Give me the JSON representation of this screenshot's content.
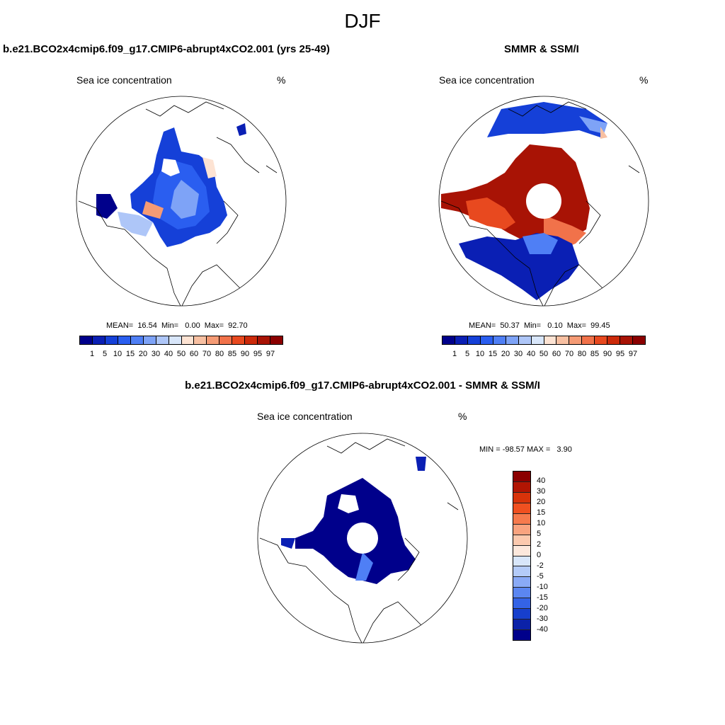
{
  "figure": {
    "season": "DJF",
    "panels": {
      "model": {
        "title": "b.e21.BCO2x4cmip6.f09_g17.CMIP6-abrupt4xCO2.001 (yrs 25-49)",
        "variable": "Sea ice concentration",
        "units": "%",
        "stats_text": "MEAN=  16.54  Min=   0.00  Max=  92.70",
        "stats": {
          "mean": 16.54,
          "min": 0.0,
          "max": 92.7
        }
      },
      "obs": {
        "title": "SMMR & SSM/I",
        "variable": "Sea ice concentration",
        "units": "%",
        "stats_text": "MEAN=  50.37  Min=   0.10  Max=  99.45",
        "stats": {
          "mean": 50.37,
          "min": 0.1,
          "max": 99.45
        }
      },
      "diff": {
        "title": "b.e21.BCO2x4cmip6.f09_g17.CMIP6-abrupt4xCO2.001 - SMMR & SSM/I",
        "variable": "Sea ice concentration",
        "units": "%",
        "stats_text": "MIN = -98.57 MAX =   3.90",
        "stats": {
          "min": -98.57,
          "max": 3.9
        }
      }
    },
    "colorbar_abs": {
      "levels": [
        "1",
        "5",
        "10",
        "15",
        "20",
        "30",
        "40",
        "50",
        "60",
        "70",
        "80",
        "85",
        "90",
        "95",
        "97"
      ],
      "colors": [
        "#00008b",
        "#0a1fb4",
        "#1540d8",
        "#2a5ef0",
        "#4f7ff5",
        "#7ea3f7",
        "#aec6f8",
        "#d8e6fa",
        "#fde3d3",
        "#f8c0a2",
        "#f59b75",
        "#f1724a",
        "#e8491f",
        "#cc2a0a",
        "#a81305",
        "#8b0000"
      ]
    },
    "colorbar_diff": {
      "levels": [
        "40",
        "30",
        "20",
        "15",
        "10",
        "5",
        "2",
        "0",
        "-2",
        "-5",
        "-10",
        "-15",
        "-20",
        "-30",
        "-40"
      ],
      "colors": [
        "#8b0000",
        "#b21503",
        "#d8330a",
        "#f05020",
        "#f67a4d",
        "#f9a37f",
        "#fcc9ae",
        "#fde8dc",
        "#d8e6fa",
        "#b4cbf8",
        "#8aaaf6",
        "#5b86f1",
        "#3463e6",
        "#173fcc",
        "#0b22a8",
        "#00008b"
      ]
    }
  }
}
